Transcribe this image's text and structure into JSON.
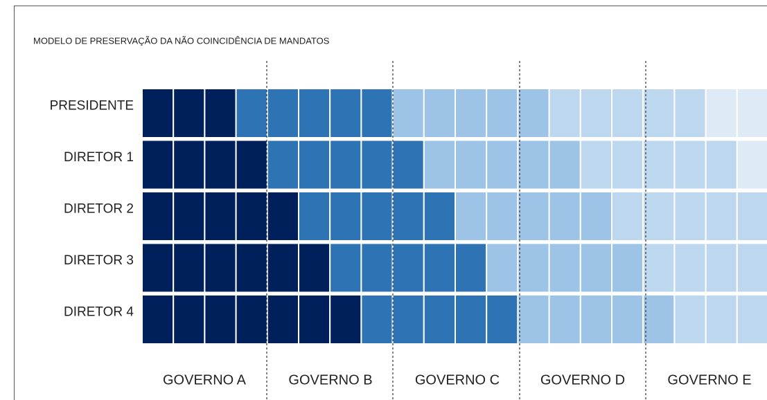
{
  "title": "MODELO DE PRESERVAÇÃO DA NÃO COINCIDÊNCIA DE MANDATOS",
  "rows": [
    {
      "label": "PRESIDENTE"
    },
    {
      "label": "DIRETOR 1"
    },
    {
      "label": "DIRETOR 2"
    },
    {
      "label": "DIRETOR 3"
    },
    {
      "label": "DIRETOR 4"
    }
  ],
  "governments": [
    {
      "label": "GOVERNO A"
    },
    {
      "label": "GOVERNO B"
    },
    {
      "label": "GOVERNO C"
    },
    {
      "label": "GOVERNO D"
    },
    {
      "label": "GOVERNO E"
    }
  ]
}
